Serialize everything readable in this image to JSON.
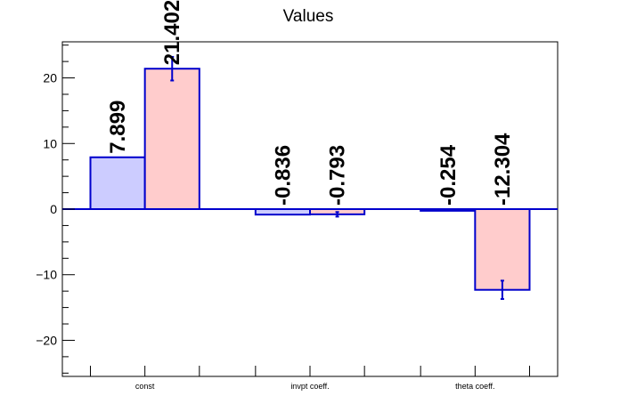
{
  "chart_data": {
    "type": "bar",
    "title": "Values",
    "xlabel": "",
    "ylabel": "",
    "categories": [
      "const",
      "invpt coeff.",
      "theta coeff."
    ],
    "ylim": [
      -25.5,
      25.5
    ],
    "yticks": [
      -20,
      -10,
      0,
      10,
      20
    ],
    "ytick_labels": [
      "−20",
      "−10",
      "0",
      "10",
      "20"
    ],
    "grid": false,
    "legend": "none",
    "series": [
      {
        "values": [
          7.899,
          -0.836,
          -0.254
        ],
        "errors": [
          0.0,
          0.0,
          0.0
        ],
        "labels": [
          "7.899",
          "-0.836",
          "-0.254"
        ],
        "fill": "#ccccff",
        "stroke": "#0000cc"
      },
      {
        "values": [
          21.402,
          -0.793,
          -12.304
        ],
        "errors": [
          1.8,
          0.35,
          1.4
        ],
        "labels": [
          "21.402",
          "-0.793",
          "-12.304"
        ],
        "fill": "#ffcccc",
        "stroke": "#0000cc"
      }
    ]
  }
}
